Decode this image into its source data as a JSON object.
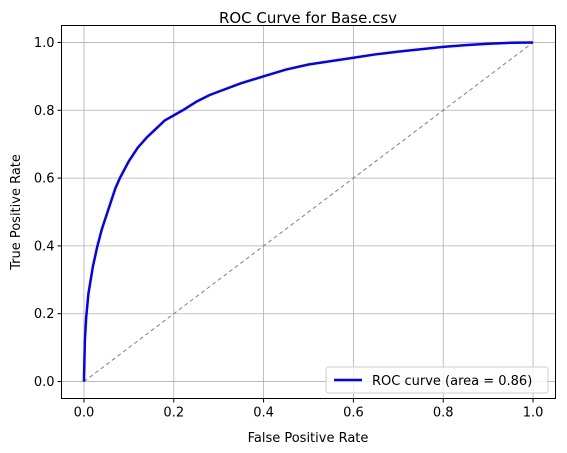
{
  "chart_data": {
    "type": "line",
    "title": "ROC Curve for Base.csv",
    "xlabel": "False Positive Rate",
    "ylabel": "True Positive Rate",
    "xlim": [
      -0.05,
      1.05
    ],
    "ylim": [
      -0.05,
      1.05
    ],
    "xticks": [
      "0.0",
      "0.2",
      "0.4",
      "0.6",
      "0.8",
      "1.0"
    ],
    "yticks": [
      "0.0",
      "0.2",
      "0.4",
      "0.6",
      "0.8",
      "1.0"
    ],
    "grid": true,
    "legend_position": "lower-right",
    "series": [
      {
        "name": "ROC curve (area = 0.86)",
        "color": "#0000ff",
        "style": "solid",
        "x": [
          0.0,
          0.002,
          0.005,
          0.01,
          0.02,
          0.03,
          0.04,
          0.05,
          0.06,
          0.07,
          0.08,
          0.09,
          0.1,
          0.12,
          0.14,
          0.16,
          0.18,
          0.2,
          0.22,
          0.25,
          0.28,
          0.3,
          0.35,
          0.4,
          0.45,
          0.5,
          0.55,
          0.6,
          0.65,
          0.7,
          0.75,
          0.8,
          0.85,
          0.9,
          0.95,
          1.0
        ],
        "y": [
          0.0,
          0.12,
          0.19,
          0.26,
          0.34,
          0.4,
          0.45,
          0.49,
          0.53,
          0.57,
          0.6,
          0.625,
          0.65,
          0.69,
          0.72,
          0.745,
          0.77,
          0.785,
          0.8,
          0.825,
          0.845,
          0.855,
          0.88,
          0.9,
          0.92,
          0.935,
          0.945,
          0.955,
          0.965,
          0.973,
          0.98,
          0.987,
          0.992,
          0.996,
          0.999,
          1.0
        ]
      },
      {
        "name": "",
        "color": "#808080",
        "style": "dashed",
        "x": [
          0,
          1
        ],
        "y": [
          0,
          1
        ]
      }
    ]
  }
}
